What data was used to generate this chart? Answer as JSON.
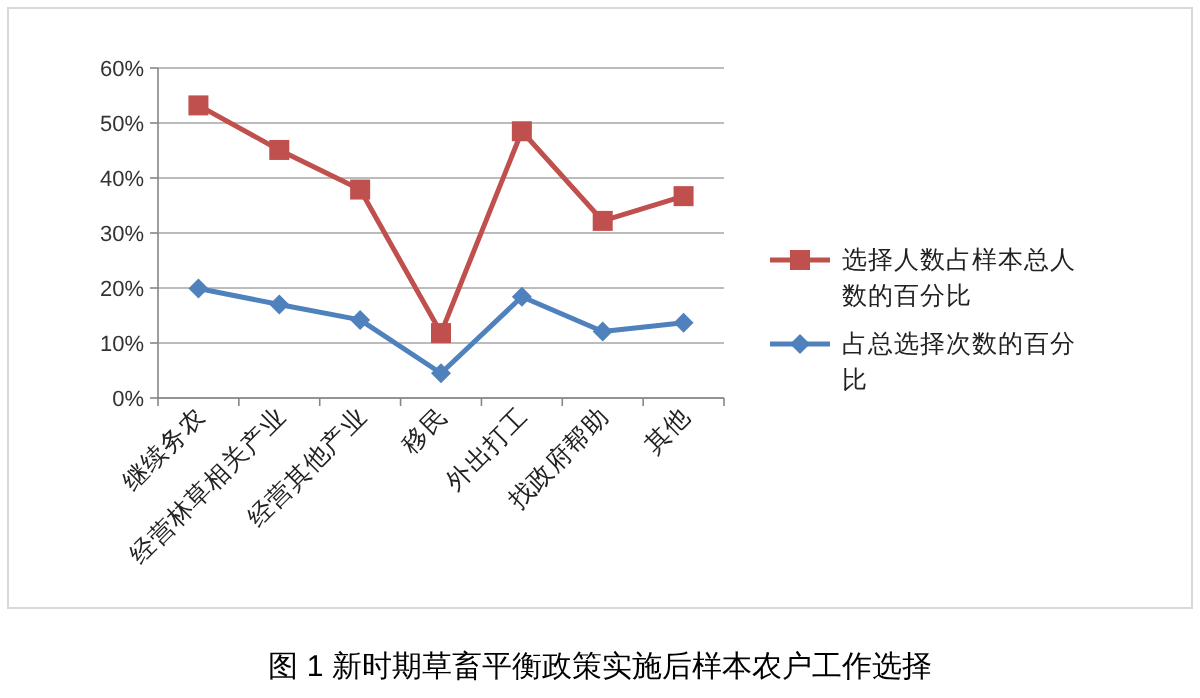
{
  "chart_data": {
    "type": "line",
    "categories": [
      "继续务农",
      "经营林草相关产业",
      "经营其他产业",
      "移民",
      "外出打工",
      "找政府帮助",
      "其他"
    ],
    "series": [
      {
        "name": "选择人数占样本总人数的百分比",
        "color": "#c0504d",
        "marker": "square",
        "values": [
          53.2,
          45.1,
          37.9,
          11.8,
          48.5,
          32.2,
          36.7
        ]
      },
      {
        "name": "占总选择次数的百分比",
        "color": "#4f81bd",
        "marker": "diamond",
        "values": [
          19.9,
          17.0,
          14.2,
          4.5,
          18.4,
          12.1,
          13.7
        ]
      }
    ],
    "ylim": [
      0,
      60
    ],
    "yticks": [
      {
        "value": 0,
        "label": "0%"
      },
      {
        "value": 10,
        "label": "10%"
      },
      {
        "value": 20,
        "label": "20%"
      },
      {
        "value": 30,
        "label": "30%"
      },
      {
        "value": 40,
        "label": "40%"
      },
      {
        "value": 50,
        "label": "50%"
      },
      {
        "value": 60,
        "label": "60%"
      }
    ],
    "grid": "y",
    "legend": "right",
    "annotations": [
      "图 1  新时期草畜平衡政策实施后样本农户工作选择"
    ]
  }
}
